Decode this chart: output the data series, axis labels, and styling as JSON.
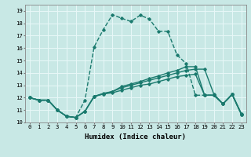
{
  "xlabel": "Humidex (Indice chaleur)",
  "xlim": [
    -0.5,
    23.5
  ],
  "ylim": [
    10,
    19.5
  ],
  "yticks": [
    10,
    11,
    12,
    13,
    14,
    15,
    16,
    17,
    18,
    19
  ],
  "xticks": [
    0,
    1,
    2,
    3,
    4,
    5,
    6,
    7,
    8,
    9,
    10,
    11,
    12,
    13,
    14,
    15,
    16,
    17,
    18,
    19,
    20,
    21,
    22,
    23
  ],
  "background_color": "#c8e8e5",
  "grid_color": "#e8f8f8",
  "line_color": "#1a7a6e",
  "lines": [
    {
      "x": [
        0,
        1,
        2,
        3,
        4,
        5,
        6,
        7,
        8,
        9,
        10,
        11,
        12,
        13,
        14,
        15,
        16,
        17,
        18,
        19,
        20,
        21,
        22,
        23
      ],
      "y": [
        12,
        11.8,
        11.8,
        11,
        10.5,
        10.4,
        10.9,
        12.1,
        12.3,
        12.5,
        12.8,
        13.0,
        13.2,
        13.4,
        13.6,
        13.8,
        14.0,
        14.2,
        14.3,
        14.3,
        12.3,
        11.5,
        12.3,
        10.7
      ],
      "style": "-",
      "linewidth": 1.0
    },
    {
      "x": [
        0,
        1,
        2,
        3,
        4,
        5,
        6,
        7,
        8,
        9,
        10,
        11,
        12,
        13,
        14,
        15,
        16,
        17,
        18,
        19,
        20,
        21,
        22,
        23
      ],
      "y": [
        12,
        11.8,
        11.8,
        11,
        10.5,
        10.4,
        11.8,
        16.1,
        17.5,
        18.7,
        18.4,
        18.15,
        18.65,
        18.35,
        17.35,
        17.35,
        15.45,
        14.75,
        12.2,
        12.2,
        12.2,
        11.5,
        12.25,
        10.65
      ],
      "style": "--",
      "linewidth": 1.0
    },
    {
      "x": [
        0,
        1,
        2,
        3,
        4,
        5,
        6,
        7,
        8,
        9,
        10,
        11,
        12,
        13,
        14,
        15,
        16,
        17,
        18,
        19,
        20,
        21,
        22,
        23
      ],
      "y": [
        12,
        11.8,
        11.8,
        11,
        10.5,
        10.4,
        10.9,
        12.1,
        12.35,
        12.5,
        12.9,
        13.1,
        13.3,
        13.55,
        13.75,
        14.0,
        14.2,
        14.5,
        14.5,
        12.2,
        12.2,
        11.5,
        12.25,
        10.65
      ],
      "style": "-",
      "linewidth": 1.0
    },
    {
      "x": [
        0,
        1,
        2,
        3,
        4,
        5,
        6,
        7,
        8,
        9,
        10,
        11,
        12,
        13,
        14,
        15,
        16,
        17,
        18,
        19,
        20,
        21,
        22,
        23
      ],
      "y": [
        12,
        11.8,
        11.8,
        11,
        10.5,
        10.4,
        10.9,
        12.1,
        12.3,
        12.4,
        12.6,
        12.8,
        13.0,
        13.1,
        13.3,
        13.5,
        13.7,
        13.8,
        13.9,
        12.2,
        12.2,
        11.5,
        12.25,
        10.65
      ],
      "style": "-",
      "linewidth": 1.0
    }
  ],
  "marker": "D",
  "markersize": 1.8,
  "xlabel_fontsize": 6.5,
  "tick_fontsize": 5.2
}
